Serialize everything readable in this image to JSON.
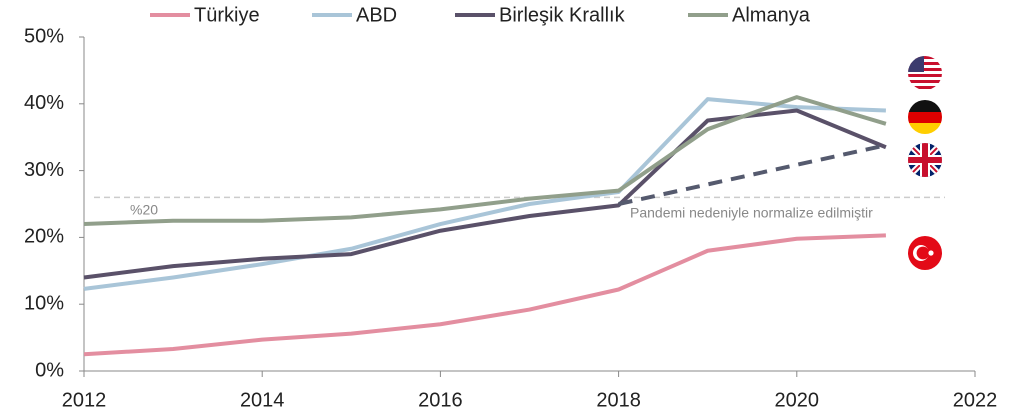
{
  "chart_data": {
    "type": "line",
    "x": [
      2012,
      2013,
      2014,
      2015,
      2016,
      2017,
      2018,
      2019,
      2020,
      2021
    ],
    "series": [
      {
        "name": "Türkiye",
        "color": "#e38ea0",
        "values": [
          2.5,
          3.3,
          4.7,
          5.6,
          7,
          9.2,
          12.2,
          18,
          19.8,
          20.3
        ]
      },
      {
        "name": "ABD",
        "color": "#a9c5d8",
        "values": [
          12.3,
          14,
          16,
          18.3,
          22,
          25,
          26.8,
          40.7,
          39.5,
          39
        ]
      },
      {
        "name": "Birleşik Krallık",
        "color": "#5a5169",
        "values": [
          14,
          15.7,
          16.8,
          17.5,
          21,
          23.2,
          24.8,
          37.5,
          39,
          33.5
        ]
      },
      {
        "name": "Almanya",
        "color": "#919f8b",
        "values": [
          22,
          22.5,
          22.5,
          23,
          24.2,
          25.8,
          27,
          36.2,
          41,
          37
        ]
      }
    ],
    "normalized": {
      "x": [
        2018,
        2021
      ],
      "values": [
        25,
        33.8
      ],
      "color": "#555a6e"
    },
    "reference_line": 26,
    "annotations": [
      "%20",
      "Pandemi nedeniyle normalize edilmiştir"
    ],
    "xlim": [
      2012,
      2022
    ],
    "xticks": [
      2012,
      2014,
      2016,
      2018,
      2020,
      2022
    ],
    "ylim": [
      0,
      50
    ],
    "yticks": [
      {
        "value": 0,
        "label": "0%"
      },
      {
        "value": 10,
        "label": "10%"
      },
      {
        "value": 20,
        "label": "20%"
      },
      {
        "value": 30,
        "label": "30%"
      },
      {
        "value": 40,
        "label": "40%"
      },
      {
        "value": 50,
        "label": "50%"
      }
    ],
    "legend": "top"
  }
}
